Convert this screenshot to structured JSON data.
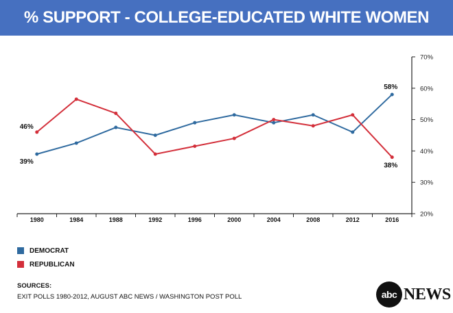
{
  "header": {
    "title": "% SUPPORT - COLLEGE-EDUCATED WHITE WOMEN"
  },
  "chart_data": {
    "type": "line",
    "categories": [
      "1980",
      "1984",
      "1988",
      "1992",
      "1996",
      "2000",
      "2004",
      "2008",
      "2012",
      "2016"
    ],
    "series": [
      {
        "name": "DEMOCRAT",
        "color": "#2f6a9f",
        "values": [
          39,
          42.5,
          47.5,
          45,
          49,
          51.5,
          49,
          51.5,
          46,
          58
        ]
      },
      {
        "name": "REPUBLICAN",
        "color": "#d32f3a",
        "values": [
          46,
          56.5,
          52,
          39,
          41.5,
          44,
          50,
          48,
          51.5,
          38
        ]
      }
    ],
    "y_ticks": [
      "20%",
      "30%",
      "40%",
      "50%",
      "60%",
      "70%"
    ],
    "ylim": [
      20,
      70
    ],
    "y_axis_side": "right",
    "grid": false,
    "annotations": {
      "dem_first": "39%",
      "rep_first": "46%",
      "dem_last": "58%",
      "rep_last": "38%"
    }
  },
  "legend": {
    "democrat": {
      "label": "DEMOCRAT",
      "color": "#2f6a9f"
    },
    "republican": {
      "label": "REPUBLICAN",
      "color": "#d32f3a"
    }
  },
  "sources": {
    "label": "SOURCES:",
    "text": "EXIT POLLS 1980-2012, AUGUST ABC NEWS / WASHINGTON POST POLL"
  },
  "logo": {
    "mark": "abc",
    "text": "NEWS"
  }
}
